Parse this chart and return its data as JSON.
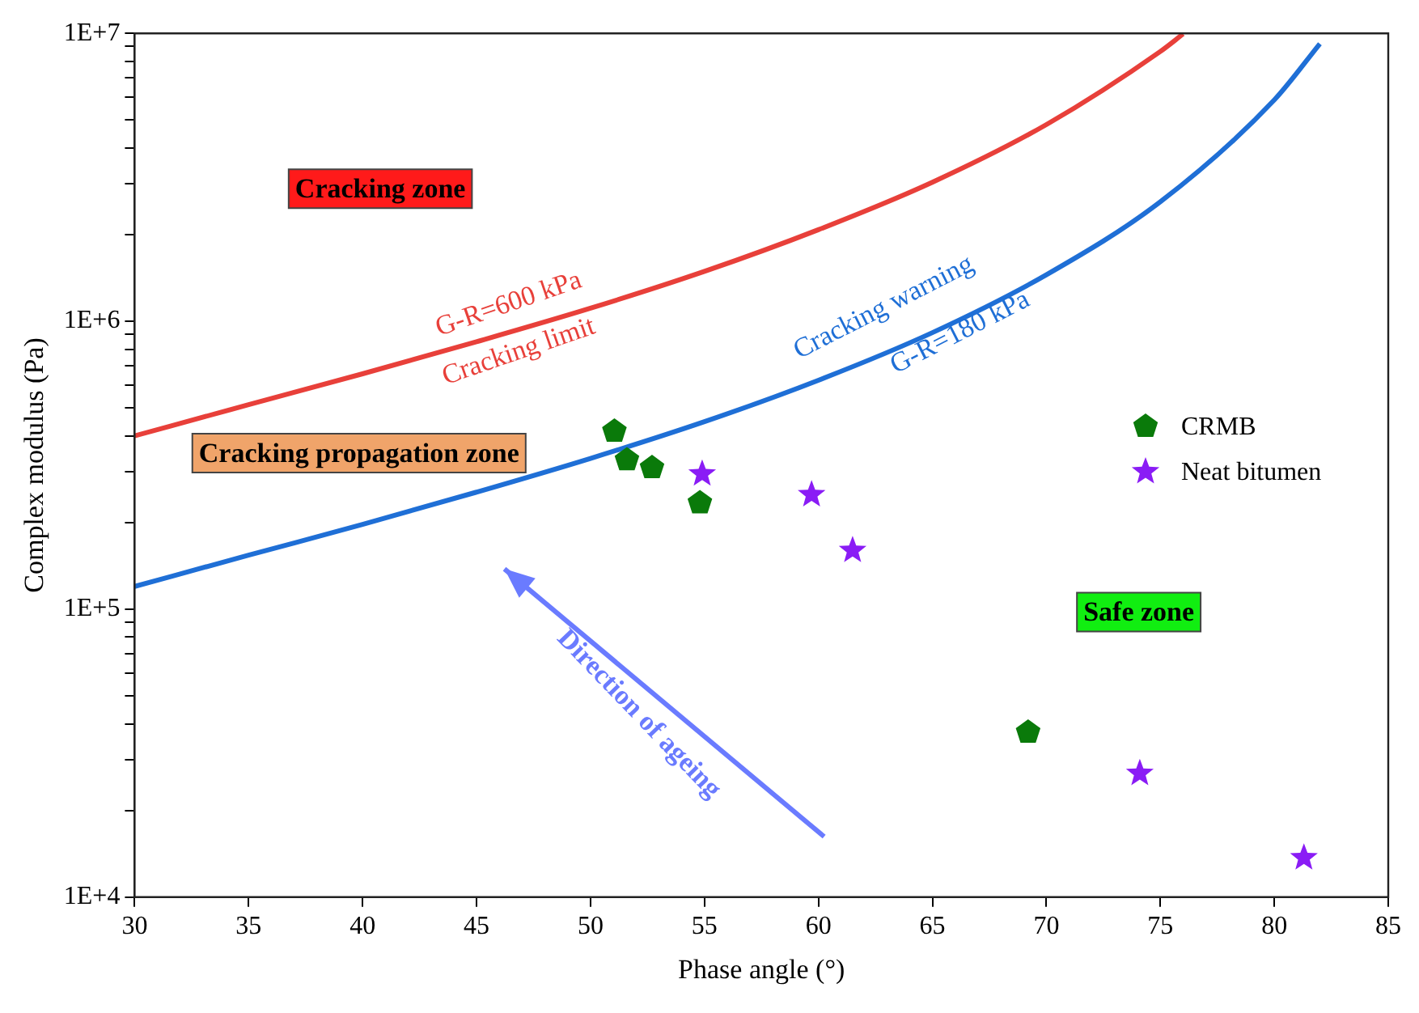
{
  "chart_data": {
    "type": "scatter",
    "xlabel": "Phase angle (°)",
    "ylabel": "Complex modulus (Pa)",
    "log": "y",
    "grid": false,
    "legend": "right",
    "xlim": [
      30,
      85
    ],
    "xticks": [
      30,
      35,
      40,
      45,
      50,
      55,
      60,
      65,
      70,
      75,
      80,
      85
    ],
    "ylim": [
      10000,
      10000000
    ],
    "yticks": [
      {
        "value": 10000,
        "label": "1E+4"
      },
      {
        "value": 20000,
        "label": null
      },
      {
        "value": 30000,
        "label": null
      },
      {
        "value": 40000,
        "label": null
      },
      {
        "value": 50000,
        "label": null
      },
      {
        "value": 60000,
        "label": null
      },
      {
        "value": 70000,
        "label": null
      },
      {
        "value": 80000,
        "label": null
      },
      {
        "value": 90000,
        "label": null
      },
      {
        "value": 100000,
        "label": "1E+5"
      },
      {
        "value": 200000,
        "label": null
      },
      {
        "value": 300000,
        "label": null
      },
      {
        "value": 400000,
        "label": null
      },
      {
        "value": 500000,
        "label": null
      },
      {
        "value": 600000,
        "label": null
      },
      {
        "value": 700000,
        "label": null
      },
      {
        "value": 800000,
        "label": null
      },
      {
        "value": 900000,
        "label": null
      },
      {
        "value": 1000000,
        "label": "1E+6"
      },
      {
        "value": 2000000,
        "label": null
      },
      {
        "value": 3000000,
        "label": null
      },
      {
        "value": 4000000,
        "label": null
      },
      {
        "value": 5000000,
        "label": null
      },
      {
        "value": 6000000,
        "label": null
      },
      {
        "value": 7000000,
        "label": null
      },
      {
        "value": 8000000,
        "label": null
      },
      {
        "value": 9000000,
        "label": null
      },
      {
        "value": 10000000,
        "label": "1E+7"
      }
    ],
    "series": [
      {
        "type": "line",
        "color": "#e8403a",
        "marker": "none",
        "x": [
          30,
          35,
          40,
          45,
          50,
          55,
          60,
          65,
          70,
          75,
          76
        ],
        "values": [
          400000,
          513000,
          657000,
          849000,
          1110000,
          1490000,
          2080000,
          3040000,
          4820000,
          8650000,
          9950000
        ]
      },
      {
        "type": "line",
        "color": "#1f6fd6",
        "marker": "none",
        "x": [
          30,
          35,
          40,
          45,
          50,
          55,
          60,
          65,
          70,
          75,
          80,
          82
        ],
        "values": [
          120000,
          154000,
          197000,
          255000,
          334000,
          448000,
          624000,
          913000,
          1450000,
          2600000,
          5870000,
          9200000
        ]
      },
      {
        "name": "CRMB",
        "color": "#0a7a0a",
        "x": [
          51.05,
          51.6,
          52.7,
          54.8,
          69.2
        ],
        "values": [
          415000,
          330000,
          310000,
          234000,
          37400
        ]
      },
      {
        "name": "Neat bitumen",
        "color": "#8a1cf5",
        "marker": "star",
        "x": [
          54.9,
          59.7,
          61.5,
          74.1,
          81.3
        ],
        "values": [
          295000,
          250000,
          160000,
          26900,
          13700
        ]
      }
    ],
    "annotations": [
      "Cracking zone",
      "Cracking propagation zone",
      "Safe zone",
      "G-R=600 kPa",
      "Cracking limit",
      "Cracking warning",
      "G-R=180 kPa",
      "Direction of ageing"
    ]
  }
}
